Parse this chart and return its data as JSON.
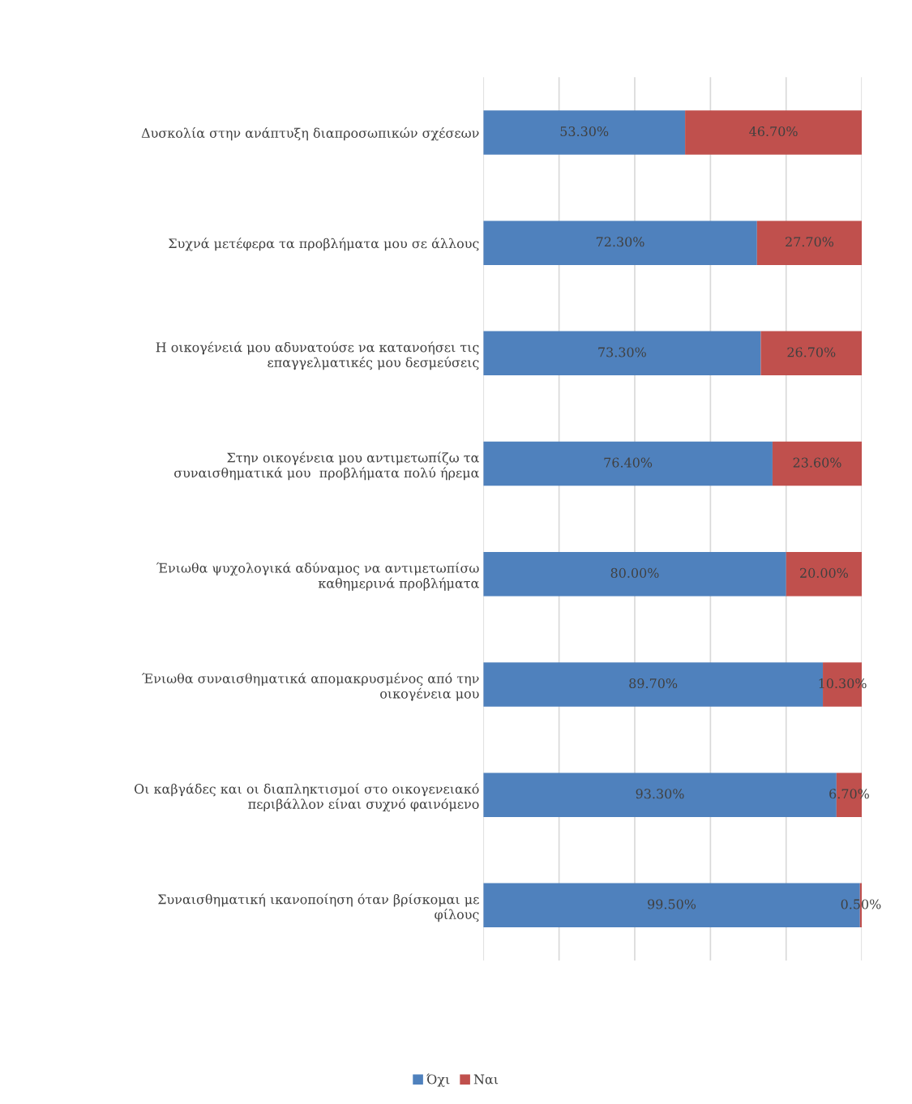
{
  "chart_data": {
    "type": "bar",
    "orientation": "horizontal",
    "stacked": true,
    "categories": [
      "Δυσκολία στην ανάπτυξη διαπροσωπικών σχέσεων",
      "Συχνά μετέφερα τα προβλήματα μου σε άλλους",
      "Η οικογένειά μου αδυνατούσε να κατανοήσει τις\nεπαγγελματικές μου δεσμεύσεις",
      "Στην οικογένεια μου αντιμετωπίζω τα\nσυναισθηματικά μου  προβλήματα πολύ ήρεμα",
      "Ένιωθα ψυχολογικά αδύναμος να αντιμετωπίσω\nκαθημερινά προβλήματα",
      "Ένιωθα συναισθηματικά απομακρυσμένος από την\nοικογένεια μου",
      "Οι καβγάδες και οι διαπληκτισμοί στο οικογενειακό\nπεριβάλλον είναι συχνό φαινόμενο",
      "Συναισθηματική ικανοποίηση όταν βρίσκομαι με\nφίλους"
    ],
    "series": [
      {
        "name": "Όχι",
        "color": "#4f81bd",
        "values": [
          53.3,
          72.3,
          73.3,
          76.4,
          80.0,
          89.7,
          93.3,
          99.5
        ],
        "value_labels": [
          "53.30%",
          "72.30%",
          "73.30%",
          "76.40%",
          "80.00%",
          "89.70%",
          "93.30%",
          "99.50%"
        ]
      },
      {
        "name": "Ναι",
        "color": "#c0504d",
        "values": [
          46.7,
          27.7,
          26.7,
          23.6,
          20.0,
          10.3,
          6.7,
          0.5
        ],
        "value_labels": [
          "46.70%",
          "27.70%",
          "26.70%",
          "23.60%",
          "20.00%",
          "10.30%",
          "6.70%",
          "0.50%"
        ]
      }
    ],
    "xlim": [
      0,
      100
    ],
    "xticks": [
      {
        "value": 0,
        "label": null
      },
      {
        "value": 20,
        "label": null
      },
      {
        "value": 40,
        "label": null
      },
      {
        "value": 60,
        "label": null
      },
      {
        "value": 80,
        "label": null
      },
      {
        "value": 100,
        "label": null
      }
    ],
    "tick_labels": "y",
    "grid": "x",
    "legend": "bottom"
  }
}
